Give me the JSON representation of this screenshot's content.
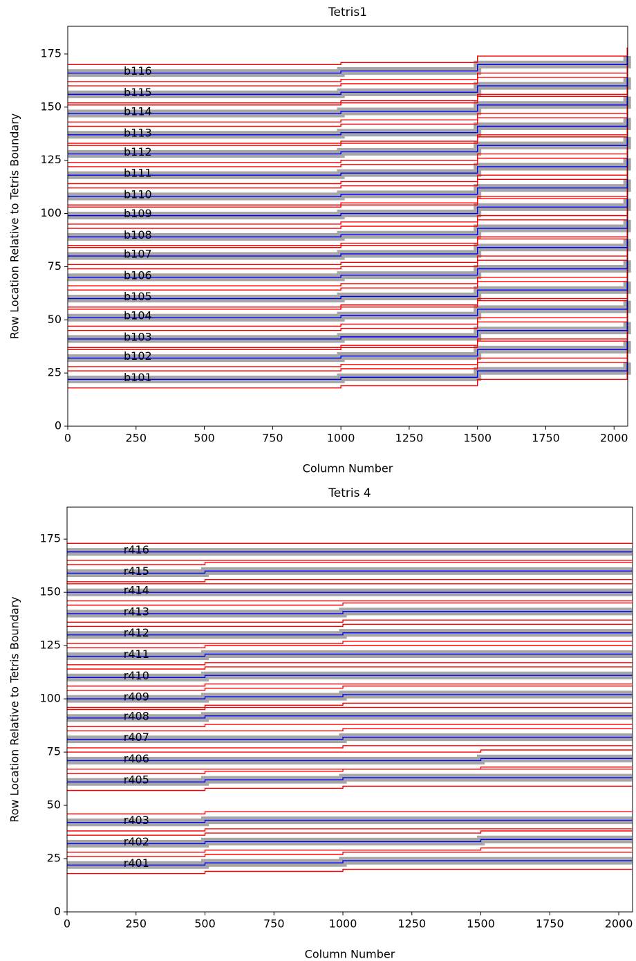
{
  "chart_data": [
    {
      "type": "line",
      "title": "Tetris1",
      "xlabel": "Column Number",
      "ylabel": "Row Location Relative to Tetris Boundary",
      "xlim": [
        0,
        2050
      ],
      "ylim": [
        0,
        188
      ],
      "xticks": [
        0,
        250,
        500,
        750,
        1000,
        1250,
        1500,
        1750,
        2000
      ],
      "yticks": [
        0,
        25,
        50,
        75,
        100,
        125,
        150,
        175
      ],
      "x": [
        0,
        500,
        1000,
        1500,
        2048
      ],
      "band_halfwidth": 4,
      "center_color": "#0000ff",
      "edge_color": "#ff0000",
      "series": [
        {
          "name": "b101",
          "values": [
            22,
            22,
            23,
            26,
            30
          ]
        },
        {
          "name": "b102",
          "values": [
            32,
            32,
            33,
            36,
            40
          ]
        },
        {
          "name": "b103",
          "values": [
            41,
            41,
            42,
            45,
            49
          ]
        },
        {
          "name": "b104",
          "values": [
            51,
            51,
            52,
            55,
            59
          ]
        },
        {
          "name": "b105",
          "values": [
            60,
            60,
            61,
            64,
            68
          ]
        },
        {
          "name": "b106",
          "values": [
            70,
            70,
            71,
            74,
            78
          ]
        },
        {
          "name": "b107",
          "values": [
            80,
            80,
            81,
            84,
            88
          ]
        },
        {
          "name": "b108",
          "values": [
            89,
            89,
            90,
            93,
            97
          ]
        },
        {
          "name": "b109",
          "values": [
            99,
            99,
            100,
            103,
            107
          ]
        },
        {
          "name": "b110",
          "values": [
            108,
            108,
            109,
            112,
            116
          ]
        },
        {
          "name": "b111",
          "values": [
            118,
            118,
            119,
            122,
            126
          ]
        },
        {
          "name": "b112",
          "values": [
            128,
            128,
            129,
            132,
            136
          ]
        },
        {
          "name": "b113",
          "values": [
            137,
            137,
            138,
            141,
            145
          ]
        },
        {
          "name": "b114",
          "values": [
            147,
            147,
            148,
            151,
            155
          ]
        },
        {
          "name": "b115",
          "values": [
            156,
            156,
            157,
            160,
            164
          ]
        },
        {
          "name": "b116",
          "values": [
            166,
            166,
            167,
            170,
            174
          ]
        }
      ]
    },
    {
      "type": "line",
      "title": "Tetris 4",
      "xlabel": "Column Number",
      "ylabel": "Row Location Relative to Tetris Boundary",
      "xlim": [
        0,
        2050
      ],
      "ylim": [
        0,
        190
      ],
      "xticks": [
        0,
        250,
        500,
        750,
        1000,
        1250,
        1500,
        1750,
        2000
      ],
      "yticks": [
        0,
        25,
        50,
        75,
        100,
        125,
        150,
        175
      ],
      "x": [
        0,
        500,
        1000,
        1500,
        2048
      ],
      "band_halfwidth": 4,
      "center_color": "#0000ff",
      "edge_color": "#ff0000",
      "series": [
        {
          "name": "r401",
          "values": [
            22,
            23,
            24,
            24,
            24
          ]
        },
        {
          "name": "r402",
          "values": [
            32,
            33,
            33,
            34,
            34
          ]
        },
        {
          "name": "r403",
          "values": [
            42,
            43,
            43,
            43,
            43
          ]
        },
        {
          "name": "r405",
          "values": [
            61,
            62,
            63,
            63,
            63
          ]
        },
        {
          "name": "r406",
          "values": [
            71,
            71,
            71,
            72,
            72
          ]
        },
        {
          "name": "r407",
          "values": [
            81,
            81,
            82,
            82,
            82
          ]
        },
        {
          "name": "r408",
          "values": [
            91,
            92,
            92,
            92,
            92
          ]
        },
        {
          "name": "r409",
          "values": [
            100,
            101,
            102,
            102,
            102
          ]
        },
        {
          "name": "r410",
          "values": [
            110,
            111,
            111,
            111,
            111
          ]
        },
        {
          "name": "r411",
          "values": [
            120,
            121,
            121,
            121,
            121
          ]
        },
        {
          "name": "r412",
          "values": [
            130,
            130,
            131,
            131,
            131
          ]
        },
        {
          "name": "r413",
          "values": [
            140,
            140,
            141,
            141,
            141
          ]
        },
        {
          "name": "r414",
          "values": [
            150,
            150,
            150,
            150,
            150
          ]
        },
        {
          "name": "r415",
          "values": [
            159,
            160,
            160,
            160,
            160
          ]
        },
        {
          "name": "r416",
          "values": [
            169,
            169,
            169,
            169,
            169
          ]
        }
      ]
    }
  ]
}
